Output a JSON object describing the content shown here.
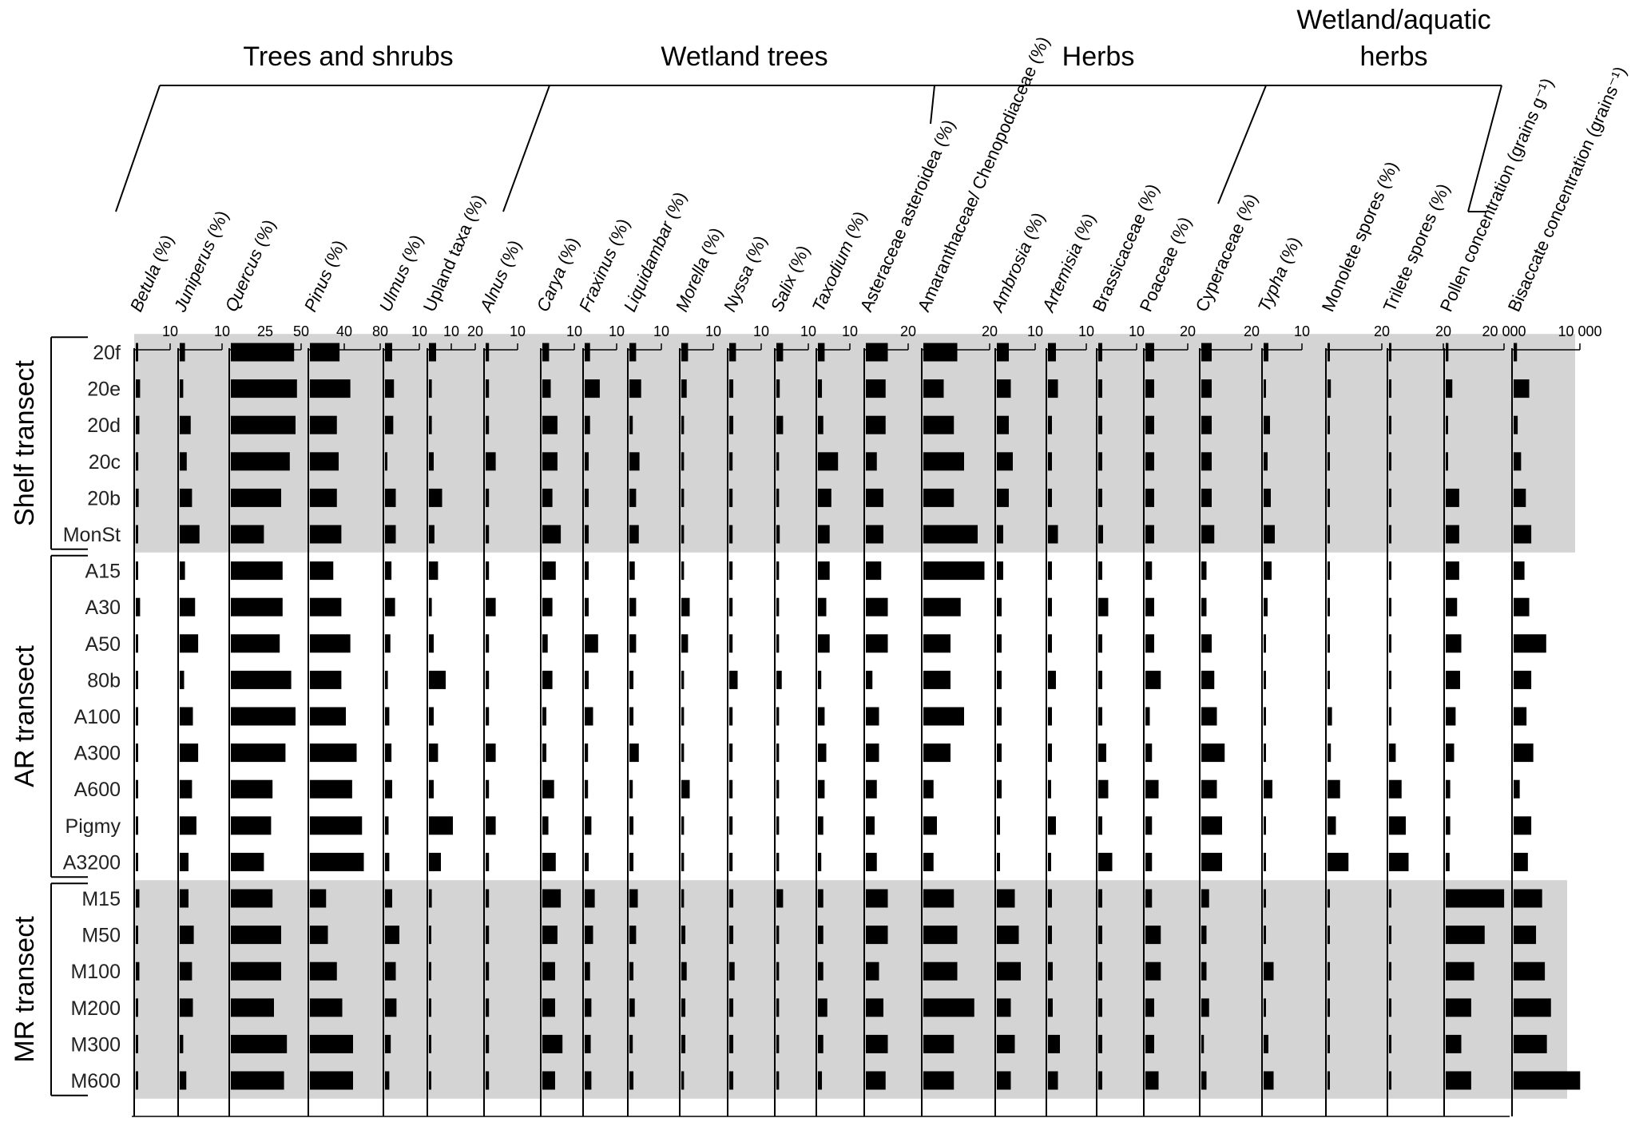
{
  "chart_data": {
    "type": "bar",
    "orientation": "horizontal",
    "groups": [
      {
        "label": "Trees and shrubs"
      },
      {
        "label": "Wetland trees"
      },
      {
        "label": "Herbs"
      },
      {
        "label": "Wetland/aquatic herbs"
      }
    ],
    "transects": [
      {
        "label": "Shelf transect",
        "shaded": true,
        "samples": [
          "20f",
          "20e",
          "20d",
          "20c",
          "20b",
          "MonSt"
        ]
      },
      {
        "label": "AR transect",
        "shaded": false,
        "samples": [
          "A15",
          "A30",
          "A50",
          "80b",
          "A100",
          "A300",
          "A600",
          "Pigmy",
          "A3200"
        ]
      },
      {
        "label": "MR transect",
        "shaded": true,
        "samples": [
          "M15",
          "M50",
          "M100",
          "M200",
          "M300",
          "M600"
        ]
      }
    ],
    "columns": [
      {
        "name": "Betula (%)",
        "ticks": [
          "10"
        ],
        "max": 10,
        "values": [
          0.6,
          1.2,
          1.0,
          0.7,
          0.8,
          0.6,
          0.5,
          1.2,
          0.3,
          0.3,
          0.3,
          0.3,
          0.6,
          0.3,
          0.2,
          1.0,
          0.6,
          1.0,
          0.4,
          0.5,
          0.6
        ]
      },
      {
        "name": "Juniperus (%)",
        "ticks": [
          "10"
        ],
        "max": 10,
        "values": [
          1.2,
          0.8,
          2.5,
          1.6,
          2.8,
          4.5,
          1.2,
          3.5,
          4.2,
          1.0,
          3.0,
          4.2,
          2.8,
          3.8,
          2.0,
          2.0,
          3.2,
          2.8,
          3.0,
          0.8,
          1.5
        ]
      },
      {
        "name": "Quercus (%)",
        "ticks": [
          "25",
          "50"
        ],
        "max": 50,
        "values": [
          44,
          46,
          45,
          41,
          35,
          23,
          36,
          36,
          34,
          42,
          45,
          38,
          29,
          28,
          23,
          29,
          35,
          35,
          30,
          39,
          37
        ]
      },
      {
        "name": "Pinus (%)",
        "ticks": [
          "40",
          "80"
        ],
        "max": 80,
        "values": [
          33,
          45,
          30,
          32,
          30,
          35,
          26,
          35,
          45,
          35,
          40,
          52,
          47,
          58,
          60,
          18,
          20,
          30,
          36,
          48,
          48
        ]
      },
      {
        "name": "Ulmus (%)",
        "ticks": [
          "10"
        ],
        "max": 10,
        "values": [
          2.0,
          2.5,
          2.3,
          0.5,
          3.0,
          3.0,
          1.8,
          2.8,
          1.5,
          0.8,
          1.2,
          1.8,
          2.0,
          1.0,
          1.2,
          2.0,
          4.0,
          3.0,
          3.2,
          1.6,
          1.2
        ]
      },
      {
        "name": "Upland taxa (%)",
        "ticks": [
          "10",
          "20"
        ],
        "max": 20,
        "values": [
          3.0,
          1.2,
          1.2,
          2.0,
          5.5,
          2.3,
          3.8,
          1.2,
          2.0,
          7.0,
          2.0,
          3.8,
          2.0,
          10.0,
          5.0,
          1.2,
          1.0,
          1.0,
          0.8,
          1.0,
          1.0
        ]
      },
      {
        "name": "Alnus (%)",
        "ticks": [
          "10"
        ],
        "max": 10,
        "values": [
          1.0,
          1.0,
          1.0,
          3.0,
          1.0,
          1.0,
          1.0,
          3.0,
          1.0,
          1.0,
          1.0,
          3.0,
          1.0,
          3.0,
          1.0,
          1.0,
          1.0,
          1.0,
          1.0,
          1.0,
          1.0
        ]
      },
      {
        "name": "Carya (%)",
        "ticks": [
          "10"
        ],
        "max": 10,
        "values": [
          2.0,
          2.5,
          4.5,
          4.5,
          3.0,
          5.5,
          4.0,
          3.0,
          1.6,
          3.0,
          1.2,
          1.2,
          3.5,
          1.8,
          4.0,
          5.5,
          4.5,
          3.8,
          3.8,
          6.0,
          3.8
        ]
      },
      {
        "name": "Fraxinus (%)",
        "ticks": [
          "10"
        ],
        "max": 10,
        "values": [
          1.6,
          4.5,
          1.6,
          1.2,
          1.2,
          1.2,
          1.2,
          1.2,
          4.0,
          1.2,
          2.5,
          1.0,
          1.0,
          2.0,
          1.2,
          3.0,
          2.5,
          1.6,
          2.0,
          1.8,
          2.0
        ]
      },
      {
        "name": "Liquidambar (%)",
        "ticks": [
          "10"
        ],
        "max": 10,
        "values": [
          2.0,
          3.5,
          1.0,
          3.0,
          2.0,
          2.8,
          1.6,
          2.0,
          2.0,
          1.2,
          1.2,
          2.8,
          1.0,
          1.2,
          1.2,
          2.5,
          2.0,
          1.2,
          1.6,
          1.0,
          1.2
        ]
      },
      {
        "name": "Morella (%)",
        "ticks": [
          "10"
        ],
        "max": 10,
        "values": [
          2.0,
          1.6,
          0.8,
          0.8,
          0.8,
          0.8,
          0.8,
          2.5,
          2.0,
          0.8,
          0.8,
          0.8,
          2.5,
          0.8,
          0.8,
          0.8,
          1.2,
          1.6,
          1.2,
          1.2,
          0.8
        ]
      },
      {
        "name": "Nyssa (%)",
        "ticks": [
          "10"
        ],
        "max": 10,
        "values": [
          2.0,
          1.2,
          1.2,
          1.0,
          1.0,
          1.0,
          1.0,
          1.0,
          1.0,
          2.5,
          1.0,
          1.0,
          1.0,
          1.0,
          1.0,
          1.2,
          1.2,
          1.6,
          1.2,
          1.2,
          1.2
        ]
      },
      {
        "name": "Salix (%)",
        "ticks": [
          "10"
        ],
        "max": 10,
        "values": [
          2.0,
          1.0,
          2.0,
          0.8,
          0.8,
          1.0,
          0.8,
          0.8,
          0.8,
          1.6,
          0.8,
          0.8,
          0.8,
          0.8,
          0.8,
          2.0,
          0.8,
          0.8,
          0.8,
          0.8,
          0.8
        ]
      },
      {
        "name": "Taxodium (%)",
        "ticks": [
          "10"
        ],
        "max": 10,
        "values": [
          2.0,
          1.2,
          1.6,
          6.0,
          4.0,
          3.5,
          3.5,
          2.5,
          3.5,
          1.0,
          2.0,
          2.5,
          2.0,
          1.6,
          1.0,
          1.6,
          1.6,
          1.6,
          2.8,
          1.6,
          1.2
        ]
      },
      {
        "name": "Asteraceae asteroidea (%)",
        "ticks": [
          "20"
        ],
        "max": 20,
        "values": [
          10,
          9,
          9,
          5,
          8,
          8,
          7,
          10,
          10,
          3,
          6,
          6,
          5,
          4,
          5,
          10,
          10,
          6,
          8,
          10,
          9
        ]
      },
      {
        "name": "Amaranthaceae/ Chenopodiaceae (%)",
        "ticks": [
          "20"
        ],
        "max": 20,
        "values": [
          10,
          6,
          9,
          12,
          9,
          16,
          18,
          11,
          8,
          8,
          12,
          8,
          3,
          4,
          3,
          9,
          10,
          10,
          15,
          9,
          9
        ]
      },
      {
        "name": "Ambrosia (%)",
        "ticks": [
          "10"
        ],
        "max": 10,
        "values": [
          3.0,
          3.5,
          3.0,
          4.0,
          3.0,
          1.6,
          1.6,
          1.2,
          1.2,
          1.2,
          1.2,
          1.2,
          1.2,
          0.8,
          0.8,
          4.5,
          5.5,
          6.0,
          3.5,
          4.5,
          3.5
        ]
      },
      {
        "name": "Artemisia (%)",
        "ticks": [
          "10"
        ],
        "max": 10,
        "values": [
          2.0,
          2.5,
          1.0,
          1.0,
          1.0,
          2.5,
          1.0,
          1.0,
          1.0,
          2.0,
          1.0,
          1.0,
          0.8,
          2.0,
          0.8,
          1.0,
          1.0,
          1.2,
          1.2,
          3.0,
          2.5
        ]
      },
      {
        "name": "Brassicaceae (%)",
        "ticks": [
          "10"
        ],
        "max": 10,
        "values": [
          1.0,
          1.0,
          1.0,
          1.0,
          1.0,
          1.2,
          1.0,
          2.5,
          1.0,
          1.0,
          1.0,
          2.0,
          2.5,
          1.0,
          3.5,
          1.0,
          1.0,
          1.0,
          1.0,
          1.0,
          1.0
        ]
      },
      {
        "name": "Poaceae (%)",
        "ticks": [
          "20"
        ],
        "max": 20,
        "values": [
          4,
          4,
          4,
          4,
          4,
          4,
          3,
          4,
          4,
          7,
          2,
          3,
          6,
          3,
          3,
          3,
          7,
          7,
          4,
          4,
          6
        ]
      },
      {
        "name": "Cyperaceae (%)",
        "ticks": [
          "20"
        ],
        "max": 20,
        "values": [
          4,
          4,
          4,
          4,
          4,
          5,
          2,
          2,
          4,
          5,
          6,
          9,
          6,
          8,
          8,
          3,
          2,
          2,
          3,
          1,
          2
        ]
      },
      {
        "name": "Typha (%)",
        "ticks": [
          "10"
        ],
        "max": 10,
        "values": [
          1.2,
          0.6,
          1.6,
          1.0,
          1.8,
          2.8,
          2.0,
          1.0,
          0.4,
          0.4,
          0.4,
          0.4,
          2.2,
          0.4,
          0.4,
          0.4,
          0.4,
          2.5,
          0.4,
          1.2,
          2.5
        ]
      },
      {
        "name": "Monolete spores (%)",
        "ticks": [
          "20"
        ],
        "max": 20,
        "values": [
          0.6,
          1.2,
          0.6,
          0.6,
          0.6,
          0.6,
          0.6,
          0.6,
          0.6,
          0.6,
          1.6,
          1.2,
          4.5,
          3.0,
          7.5,
          0.6,
          0.6,
          0.6,
          0.6,
          0.6,
          0.6
        ]
      },
      {
        "name": "Trilete spores (%)",
        "ticks": [
          "20"
        ],
        "max": 20,
        "values": [
          0.6,
          0.6,
          0.6,
          0.6,
          0.6,
          0.6,
          0.6,
          0.6,
          0.6,
          0.6,
          0.6,
          2.4,
          4.5,
          6.0,
          7.0,
          0.6,
          0.6,
          0.6,
          0.6,
          0.6,
          0.6
        ]
      },
      {
        "name": "Pollen concentration (grains g⁻¹)",
        "ticks": [
          "20 000"
        ],
        "max": 20000,
        "values": [
          900,
          2200,
          600,
          600,
          4500,
          4500,
          4500,
          3800,
          5200,
          4800,
          3300,
          2800,
          1500,
          1500,
          1300,
          19500,
          13000,
          9500,
          8500,
          5200,
          8500
        ]
      },
      {
        "name": "Bisaccate concentration (grains⁻¹)",
        "ticks": [
          "10 000"
        ],
        "max": 10000,
        "values": [
          500,
          2300,
          600,
          1100,
          1800,
          2600,
          1600,
          2300,
          4800,
          2600,
          1900,
          2900,
          900,
          2600,
          2100,
          4200,
          3300,
          4600,
          5500,
          4900,
          9800
        ]
      }
    ]
  }
}
